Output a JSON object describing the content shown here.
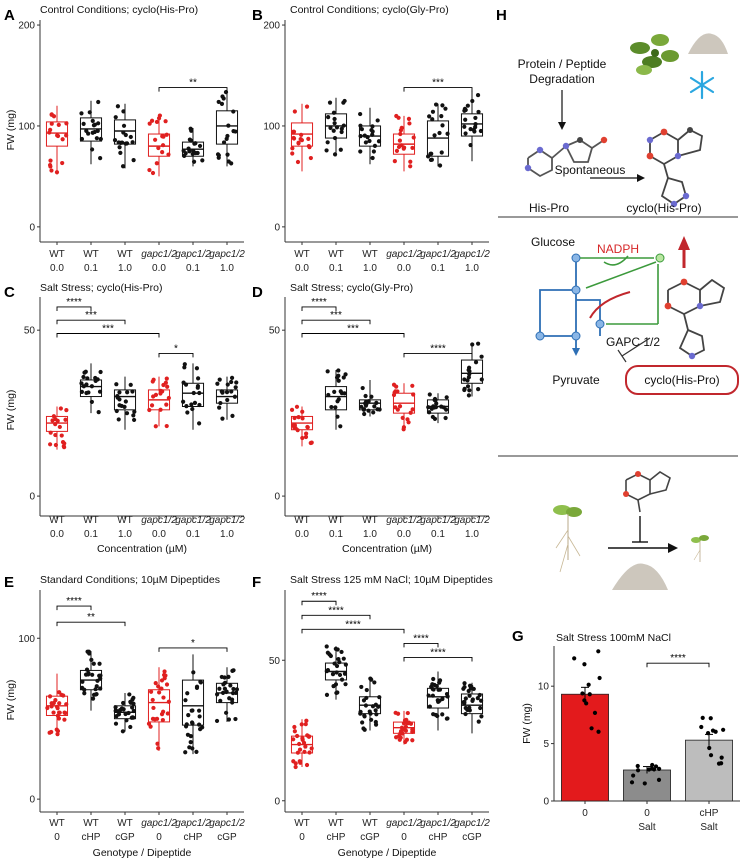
{
  "chart_data": [
    {
      "panel": "A",
      "type": "box",
      "title": "Control Conditions; cyclo(His-Pro)",
      "ylabel": "FW (mg)",
      "ylim": [
        -15,
        205
      ],
      "yticks": [
        0,
        100,
        200
      ],
      "groups": [
        {
          "genotype": "WT",
          "dose": "0.0",
          "median": 93,
          "q1": 80,
          "q3": 104,
          "lo": 52,
          "hi": 120,
          "color": "#e02020"
        },
        {
          "genotype": "WT",
          "dose": "0.1",
          "median": 97,
          "q1": 85,
          "q3": 108,
          "lo": 62,
          "hi": 125,
          "color": "#111111"
        },
        {
          "genotype": "WT",
          "dose": "1.0",
          "median": 95,
          "q1": 82,
          "q3": 106,
          "lo": 58,
          "hi": 122,
          "color": "#111111"
        },
        {
          "genotype": "gapc1/2",
          "dose": "0.0",
          "median": 80,
          "q1": 70,
          "q3": 92,
          "lo": 50,
          "hi": 112,
          "color": "#e02020"
        },
        {
          "genotype": "gapc1/2",
          "dose": "0.1",
          "median": 77,
          "q1": 70,
          "q3": 84,
          "lo": 60,
          "hi": 98,
          "color": "#111111"
        },
        {
          "genotype": "gapc1/2",
          "dose": "1.0",
          "median": 100,
          "q1": 82,
          "q3": 115,
          "lo": 60,
          "hi": 135,
          "color": "#111111"
        }
      ],
      "significance": [
        {
          "from": 3,
          "to": 5,
          "label": "**",
          "y": 138
        }
      ]
    },
    {
      "panel": "B",
      "type": "box",
      "title": "Control Conditions; cyclo(Gly-Pro)",
      "ylabel": "",
      "ylim": [
        -15,
        205
      ],
      "yticks": [
        0,
        100,
        200
      ],
      "groups": [
        {
          "genotype": "WT",
          "dose": "0.0",
          "median": 92,
          "q1": 80,
          "q3": 103,
          "lo": 55,
          "hi": 122,
          "color": "#e02020"
        },
        {
          "genotype": "WT",
          "dose": "0.1",
          "median": 100,
          "q1": 88,
          "q3": 112,
          "lo": 70,
          "hi": 128,
          "color": "#111111"
        },
        {
          "genotype": "WT",
          "dose": "1.0",
          "median": 90,
          "q1": 80,
          "q3": 100,
          "lo": 62,
          "hi": 118,
          "color": "#111111"
        },
        {
          "genotype": "gapc1/2",
          "dose": "0.0",
          "median": 82,
          "q1": 72,
          "q3": 92,
          "lo": 55,
          "hi": 110,
          "color": "#e02020"
        },
        {
          "genotype": "gapc1/2",
          "dose": "0.1",
          "median": 88,
          "q1": 70,
          "q3": 105,
          "lo": 60,
          "hi": 122,
          "color": "#111111"
        },
        {
          "genotype": "gapc1/2",
          "dose": "1.0",
          "median": 102,
          "q1": 90,
          "q3": 112,
          "lo": 65,
          "hi": 135,
          "color": "#111111"
        }
      ],
      "significance": [
        {
          "from": 3,
          "to": 5,
          "label": "***",
          "y": 138
        }
      ]
    },
    {
      "panel": "C",
      "type": "box",
      "title": "Salt Stress; cyclo(His-Pro)",
      "ylabel": "FW (mg)",
      "xlabel": "Concentration (µM)",
      "ylim": [
        -6,
        60
      ],
      "yticks": [
        0,
        50
      ],
      "groups": [
        {
          "genotype": "WT",
          "dose": "0.0",
          "median": 22,
          "q1": 19.5,
          "q3": 24,
          "lo": 14,
          "hi": 27,
          "color": "#e02020"
        },
        {
          "genotype": "WT",
          "dose": "0.1",
          "median": 33,
          "q1": 30,
          "q3": 35,
          "lo": 25,
          "hi": 40,
          "color": "#111111"
        },
        {
          "genotype": "WT",
          "dose": "1.0",
          "median": 30,
          "q1": 26,
          "q3": 32,
          "lo": 20,
          "hi": 36,
          "color": "#111111"
        },
        {
          "genotype": "gapc1/2",
          "dose": "0.0",
          "median": 29,
          "q1": 26,
          "q3": 32,
          "lo": 21,
          "hi": 36,
          "color": "#e02020"
        },
        {
          "genotype": "gapc1/2",
          "dose": "0.1",
          "median": 31,
          "q1": 27,
          "q3": 34,
          "lo": 20,
          "hi": 40,
          "color": "#111111"
        },
        {
          "genotype": "gapc1/2",
          "dose": "1.0",
          "median": 30,
          "q1": 28,
          "q3": 32,
          "lo": 23,
          "hi": 36,
          "color": "#111111"
        }
      ],
      "significance": [
        {
          "from": 0,
          "to": 1,
          "label": "****",
          "y": 57
        },
        {
          "from": 0,
          "to": 2,
          "label": "***",
          "y": 53
        },
        {
          "from": 0,
          "to": 3,
          "label": "***",
          "y": 49
        },
        {
          "from": 3,
          "to": 4,
          "label": "*",
          "y": 43
        }
      ]
    },
    {
      "panel": "D",
      "type": "box",
      "title": "Salt Stress; cyclo(Gly-Pro)",
      "ylabel": "",
      "xlabel": "Concentration (µM)",
      "ylim": [
        -6,
        60
      ],
      "yticks": [
        0,
        50
      ],
      "groups": [
        {
          "genotype": "WT",
          "dose": "0.0",
          "median": 22,
          "q1": 20,
          "q3": 24,
          "lo": 15,
          "hi": 27,
          "color": "#e02020"
        },
        {
          "genotype": "WT",
          "dose": "0.1",
          "median": 30,
          "q1": 26,
          "q3": 33,
          "lo": 20,
          "hi": 38,
          "color": "#111111"
        },
        {
          "genotype": "WT",
          "dose": "1.0",
          "median": 28,
          "q1": 26,
          "q3": 29,
          "lo": 24,
          "hi": 35,
          "color": "#111111"
        },
        {
          "genotype": "gapc1/2",
          "dose": "0.0",
          "median": 28,
          "q1": 25,
          "q3": 31,
          "lo": 20,
          "hi": 34,
          "color": "#e02020"
        },
        {
          "genotype": "gapc1/2",
          "dose": "0.1",
          "median": 27,
          "q1": 25,
          "q3": 29,
          "lo": 22,
          "hi": 31,
          "color": "#111111"
        },
        {
          "genotype": "gapc1/2",
          "dose": "1.0",
          "median": 37,
          "q1": 34,
          "q3": 41,
          "lo": 30,
          "hi": 46,
          "color": "#111111"
        }
      ],
      "significance": [
        {
          "from": 0,
          "to": 1,
          "label": "****",
          "y": 57
        },
        {
          "from": 0,
          "to": 2,
          "label": "***",
          "y": 53
        },
        {
          "from": 0,
          "to": 3,
          "label": "***",
          "y": 49
        },
        {
          "from": 3,
          "to": 5,
          "label": "****",
          "y": 43
        }
      ]
    },
    {
      "panel": "E",
      "type": "box",
      "title": "Standard Conditions; 10µM Dipeptides",
      "ylabel": "FW (mg)",
      "xlabel": "Genotype / Dipeptide",
      "ylim": [
        -8,
        130
      ],
      "yticks": [
        0,
        100
      ],
      "groups": [
        {
          "genotype": "WT",
          "dose": "0",
          "median": 58,
          "q1": 52,
          "q3": 64,
          "lo": 40,
          "hi": 78,
          "color": "#e02020"
        },
        {
          "genotype": "WT",
          "dose": "cHP",
          "median": 74,
          "q1": 68,
          "q3": 80,
          "lo": 55,
          "hi": 92,
          "color": "#111111"
        },
        {
          "genotype": "WT",
          "dose": "cGP",
          "median": 54,
          "q1": 50,
          "q3": 58,
          "lo": 42,
          "hi": 66,
          "color": "#111111"
        },
        {
          "genotype": "gapc1/2",
          "dose": "0",
          "median": 60,
          "q1": 48,
          "q3": 68,
          "lo": 30,
          "hi": 82,
          "color": "#e02020"
        },
        {
          "genotype": "gapc1/2",
          "dose": "cHP",
          "median": 58,
          "q1": 46,
          "q3": 74,
          "lo": 28,
          "hi": 90,
          "color": "#111111"
        },
        {
          "genotype": "gapc1/2",
          "dose": "cGP",
          "median": 66,
          "q1": 60,
          "q3": 72,
          "lo": 48,
          "hi": 82,
          "color": "#111111"
        }
      ],
      "significance": [
        {
          "from": 0,
          "to": 1,
          "label": "****",
          "y": 120
        },
        {
          "from": 0,
          "to": 2,
          "label": "**",
          "y": 110
        },
        {
          "from": 3,
          "to": 5,
          "label": "*",
          "y": 94
        }
      ]
    },
    {
      "panel": "F",
      "type": "box",
      "title": "Salt Stress 125 mM NaCl; 10µM Dipeptides",
      "ylabel": "",
      "xlabel": "Genotype / Dipeptide",
      "ylim": [
        -4,
        75
      ],
      "yticks": [
        0,
        50
      ],
      "groups": [
        {
          "genotype": "WT",
          "dose": "0",
          "median": 20,
          "q1": 17,
          "q3": 23,
          "lo": 12,
          "hi": 29,
          "color": "#e02020"
        },
        {
          "genotype": "WT",
          "dose": "cHP",
          "median": 46,
          "q1": 43,
          "q3": 49,
          "lo": 36,
          "hi": 55,
          "color": "#111111"
        },
        {
          "genotype": "WT",
          "dose": "cGP",
          "median": 34,
          "q1": 31,
          "q3": 37,
          "lo": 25,
          "hi": 44,
          "color": "#111111"
        },
        {
          "genotype": "gapc1/2",
          "dose": "0",
          "median": 26,
          "q1": 24,
          "q3": 28,
          "lo": 20,
          "hi": 32,
          "color": "#e02020"
        },
        {
          "genotype": "gapc1/2",
          "dose": "cHP",
          "median": 37,
          "q1": 33,
          "q3": 40,
          "lo": 25,
          "hi": 46,
          "color": "#111111"
        },
        {
          "genotype": "gapc1/2",
          "dose": "cGP",
          "median": 34,
          "q1": 31,
          "q3": 38,
          "lo": 24,
          "hi": 42,
          "color": "#111111"
        }
      ],
      "significance": [
        {
          "from": 0,
          "to": 1,
          "label": "****",
          "y": 71
        },
        {
          "from": 0,
          "to": 2,
          "label": "****",
          "y": 66
        },
        {
          "from": 0,
          "to": 3,
          "label": "****",
          "y": 61
        },
        {
          "from": 3,
          "to": 4,
          "label": "****",
          "y": 56
        },
        {
          "from": 3,
          "to": 5,
          "label": "****",
          "y": 51
        }
      ]
    },
    {
      "panel": "G",
      "type": "bar",
      "title": "Salt Stress 100mM NaCl",
      "ylabel": "FW (mg)",
      "ylim": [
        0,
        13.5
      ],
      "yticks": [
        0,
        5,
        10
      ],
      "categories": [
        [
          "0",
          ""
        ],
        [
          "0",
          "Salt"
        ],
        [
          "cHP",
          "Salt"
        ]
      ],
      "values": [
        9.3,
        2.7,
        5.3
      ],
      "errors": [
        0.6,
        0.3,
        0.5
      ],
      "colors": [
        "#e31a1c",
        "#8c8c8c",
        "#bdbdbd"
      ],
      "significance": [
        {
          "from": 1,
          "to": 2,
          "label": "****",
          "y": 12
        }
      ]
    }
  ],
  "panel_labels": [
    "A",
    "B",
    "C",
    "D",
    "E",
    "F",
    "G",
    "H"
  ],
  "schematic": {
    "top": {
      "source": "Protein / Peptide\nDegradation",
      "reactant": "His-Pro",
      "process": "Spontaneous",
      "product": "cyclo(His-Pro)"
    },
    "middle": {
      "glucose": "Glucose",
      "nadph": "NADPH",
      "gapc": "GAPC 1/2",
      "pyruvate": "Pyruvate",
      "inhibitor": "cyclo(His-Pro)"
    }
  }
}
